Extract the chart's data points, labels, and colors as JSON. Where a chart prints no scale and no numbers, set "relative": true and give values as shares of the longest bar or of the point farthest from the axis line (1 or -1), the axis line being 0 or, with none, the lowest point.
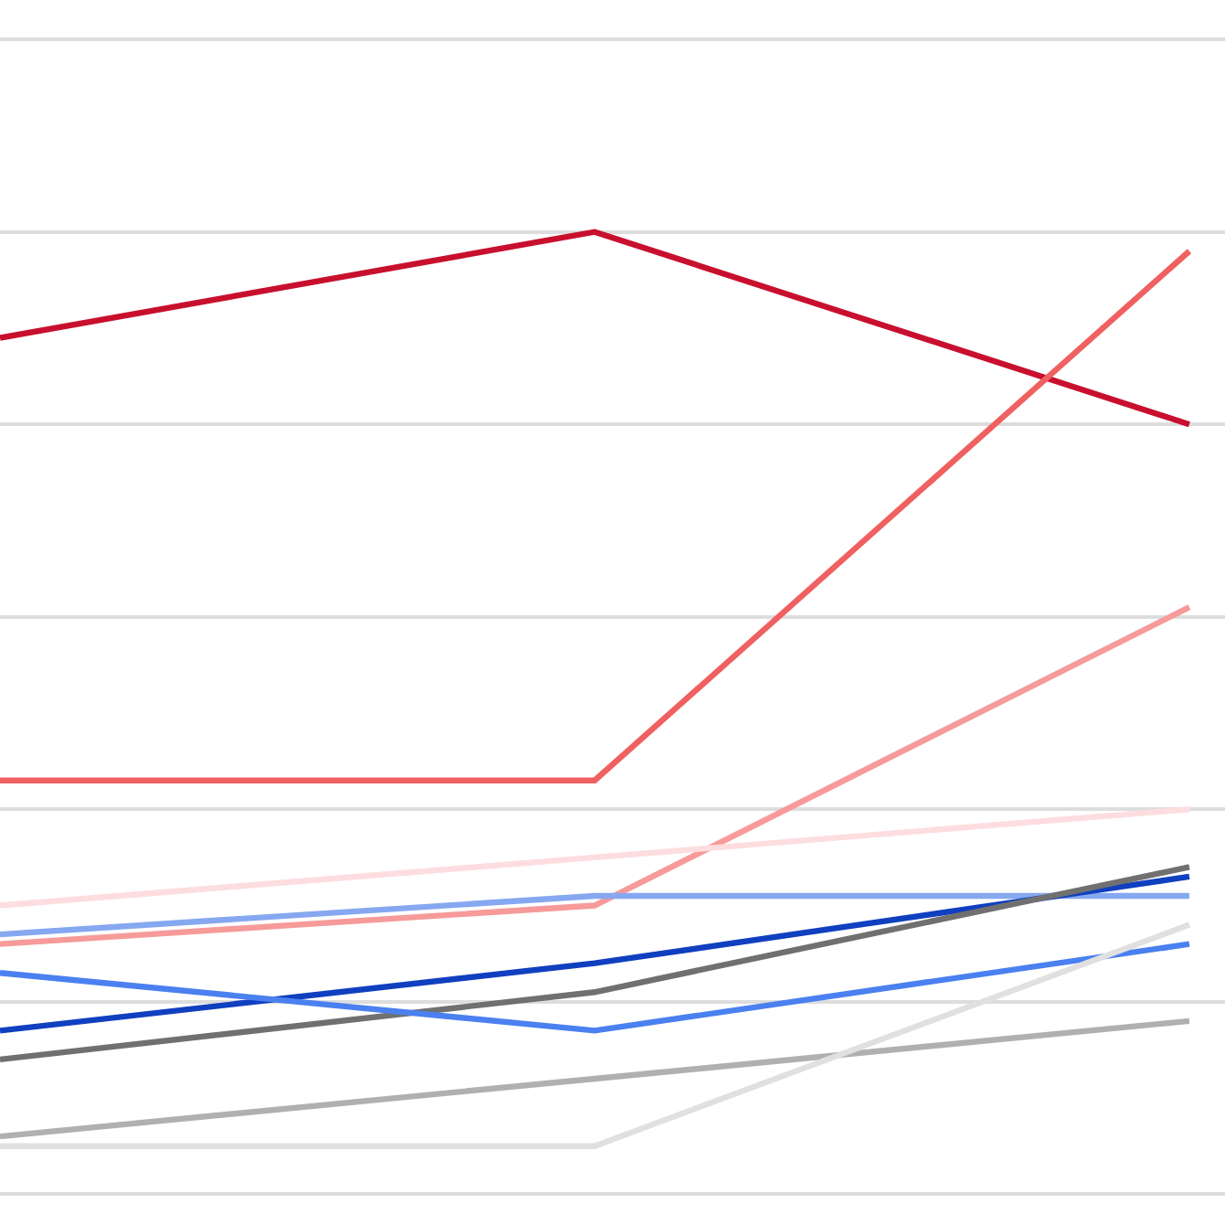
{
  "chart_data": {
    "type": "line",
    "relative": true,
    "grid": "y",
    "marker": "none",
    "line_style": "solid",
    "categories": [
      null,
      null,
      null
    ],
    "series": [
      {
        "color": "#c8102e",
        "values": [
          0.89,
          1.0,
          0.8
        ]
      },
      {
        "color": "#f06060",
        "values": [
          0.43,
          0.43,
          0.98
        ]
      },
      {
        "color": "#f79a9a",
        "values": [
          0.26,
          0.3,
          0.61
        ]
      },
      {
        "color": "#fddde0",
        "values": [
          0.3,
          0.35,
          0.4
        ]
      },
      {
        "color": "#86a8f0",
        "values": [
          0.27,
          0.31,
          0.31
        ]
      },
      {
        "color": "#1040c0",
        "values": [
          0.17,
          0.24,
          0.33
        ]
      },
      {
        "color": "#707070",
        "values": [
          0.14,
          0.21,
          0.34
        ]
      },
      {
        "color": "#4a80f0",
        "values": [
          0.23,
          0.17,
          0.26
        ]
      },
      {
        "color": "#b0b0b0",
        "values": [
          0.06,
          0.12,
          0.18
        ]
      },
      {
        "color": "#e0e0e0",
        "values": [
          0.05,
          0.05,
          0.28
        ]
      }
    ]
  }
}
